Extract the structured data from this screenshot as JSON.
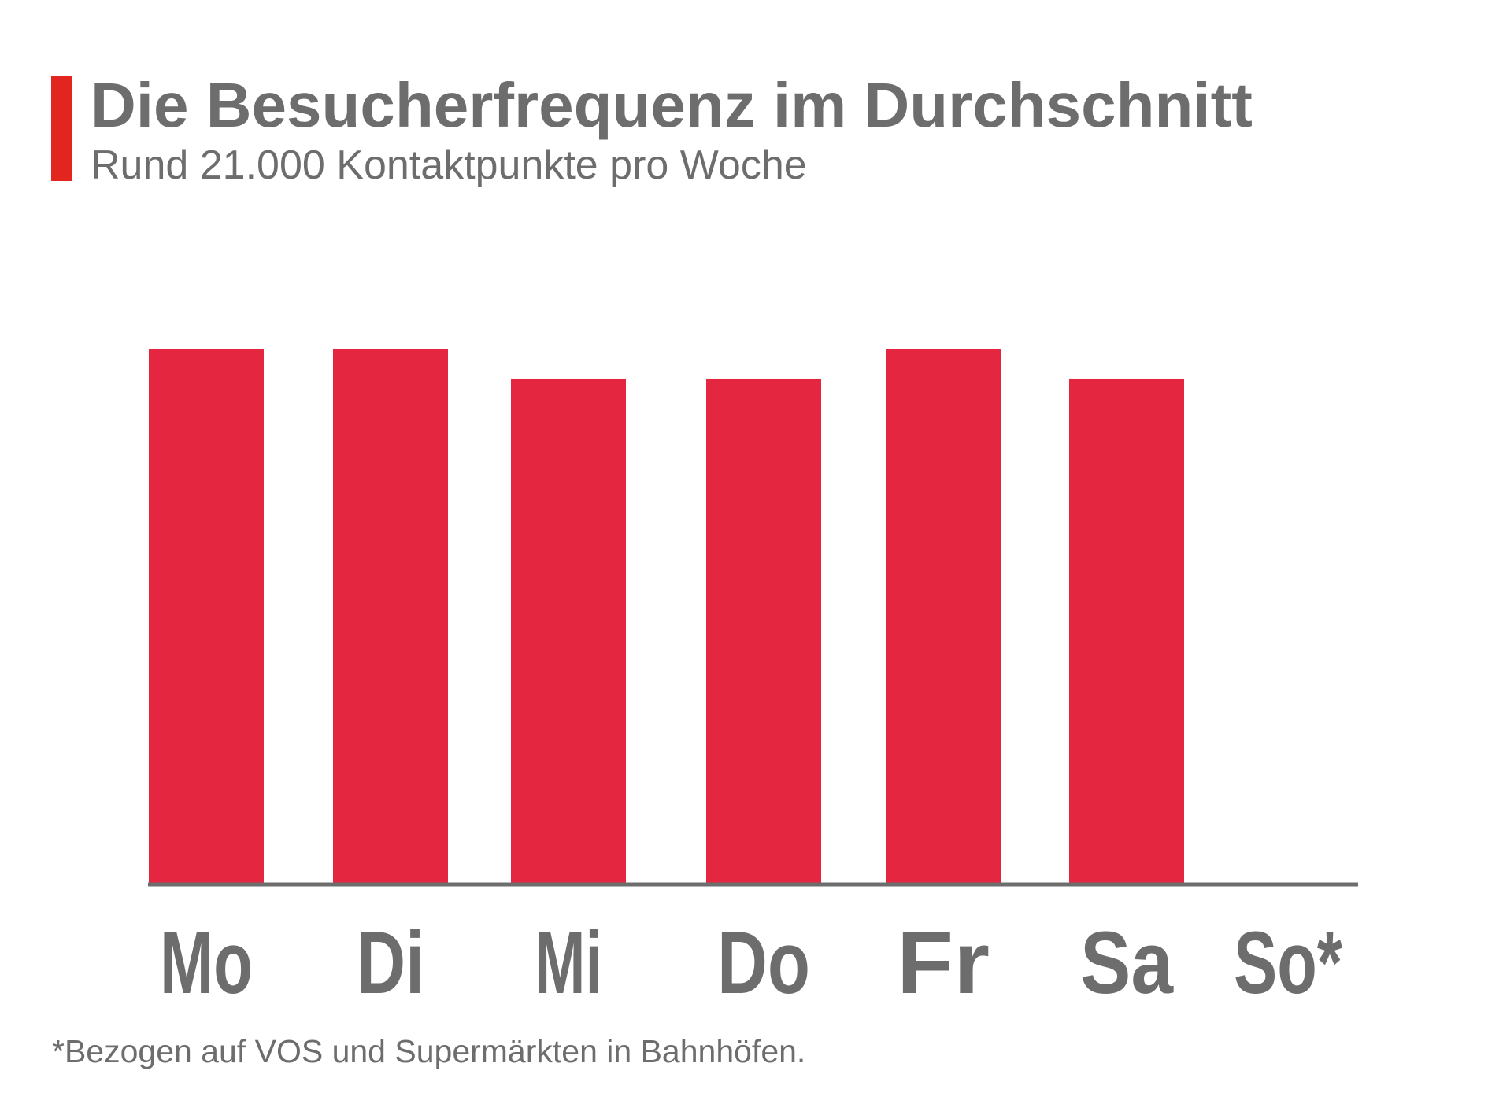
{
  "header": {
    "title": "Die Besucherfrequenz im Durchschnitt",
    "subtitle": "Rund 21.000 Kontaktpunkte pro Woche"
  },
  "footnote": "*Bezogen auf VOS und Supermärkten in Bahnhöfen.",
  "colors": {
    "accent": "#e2261f",
    "bar": "#e52641",
    "text": "#6d6d6d",
    "axis": "#6d6d6d"
  },
  "chart_data": {
    "type": "bar",
    "title": "Die Besucherfrequenz im Durchschnitt",
    "subtitle": "Rund 21.000 Kontaktpunkte pro Woche",
    "categories": [
      "Mo",
      "Di",
      "Mi",
      "Do",
      "Fr",
      "Sa",
      "So*"
    ],
    "values": [
      100,
      100,
      94.4,
      94.4,
      100,
      94.4,
      0
    ],
    "value_unit": "relative to the tallest bar (=100)",
    "ylim": [
      0,
      100
    ],
    "xlabel": "",
    "ylabel": "",
    "grid": false,
    "legend": "none",
    "y_axis_labels_shown": false
  }
}
